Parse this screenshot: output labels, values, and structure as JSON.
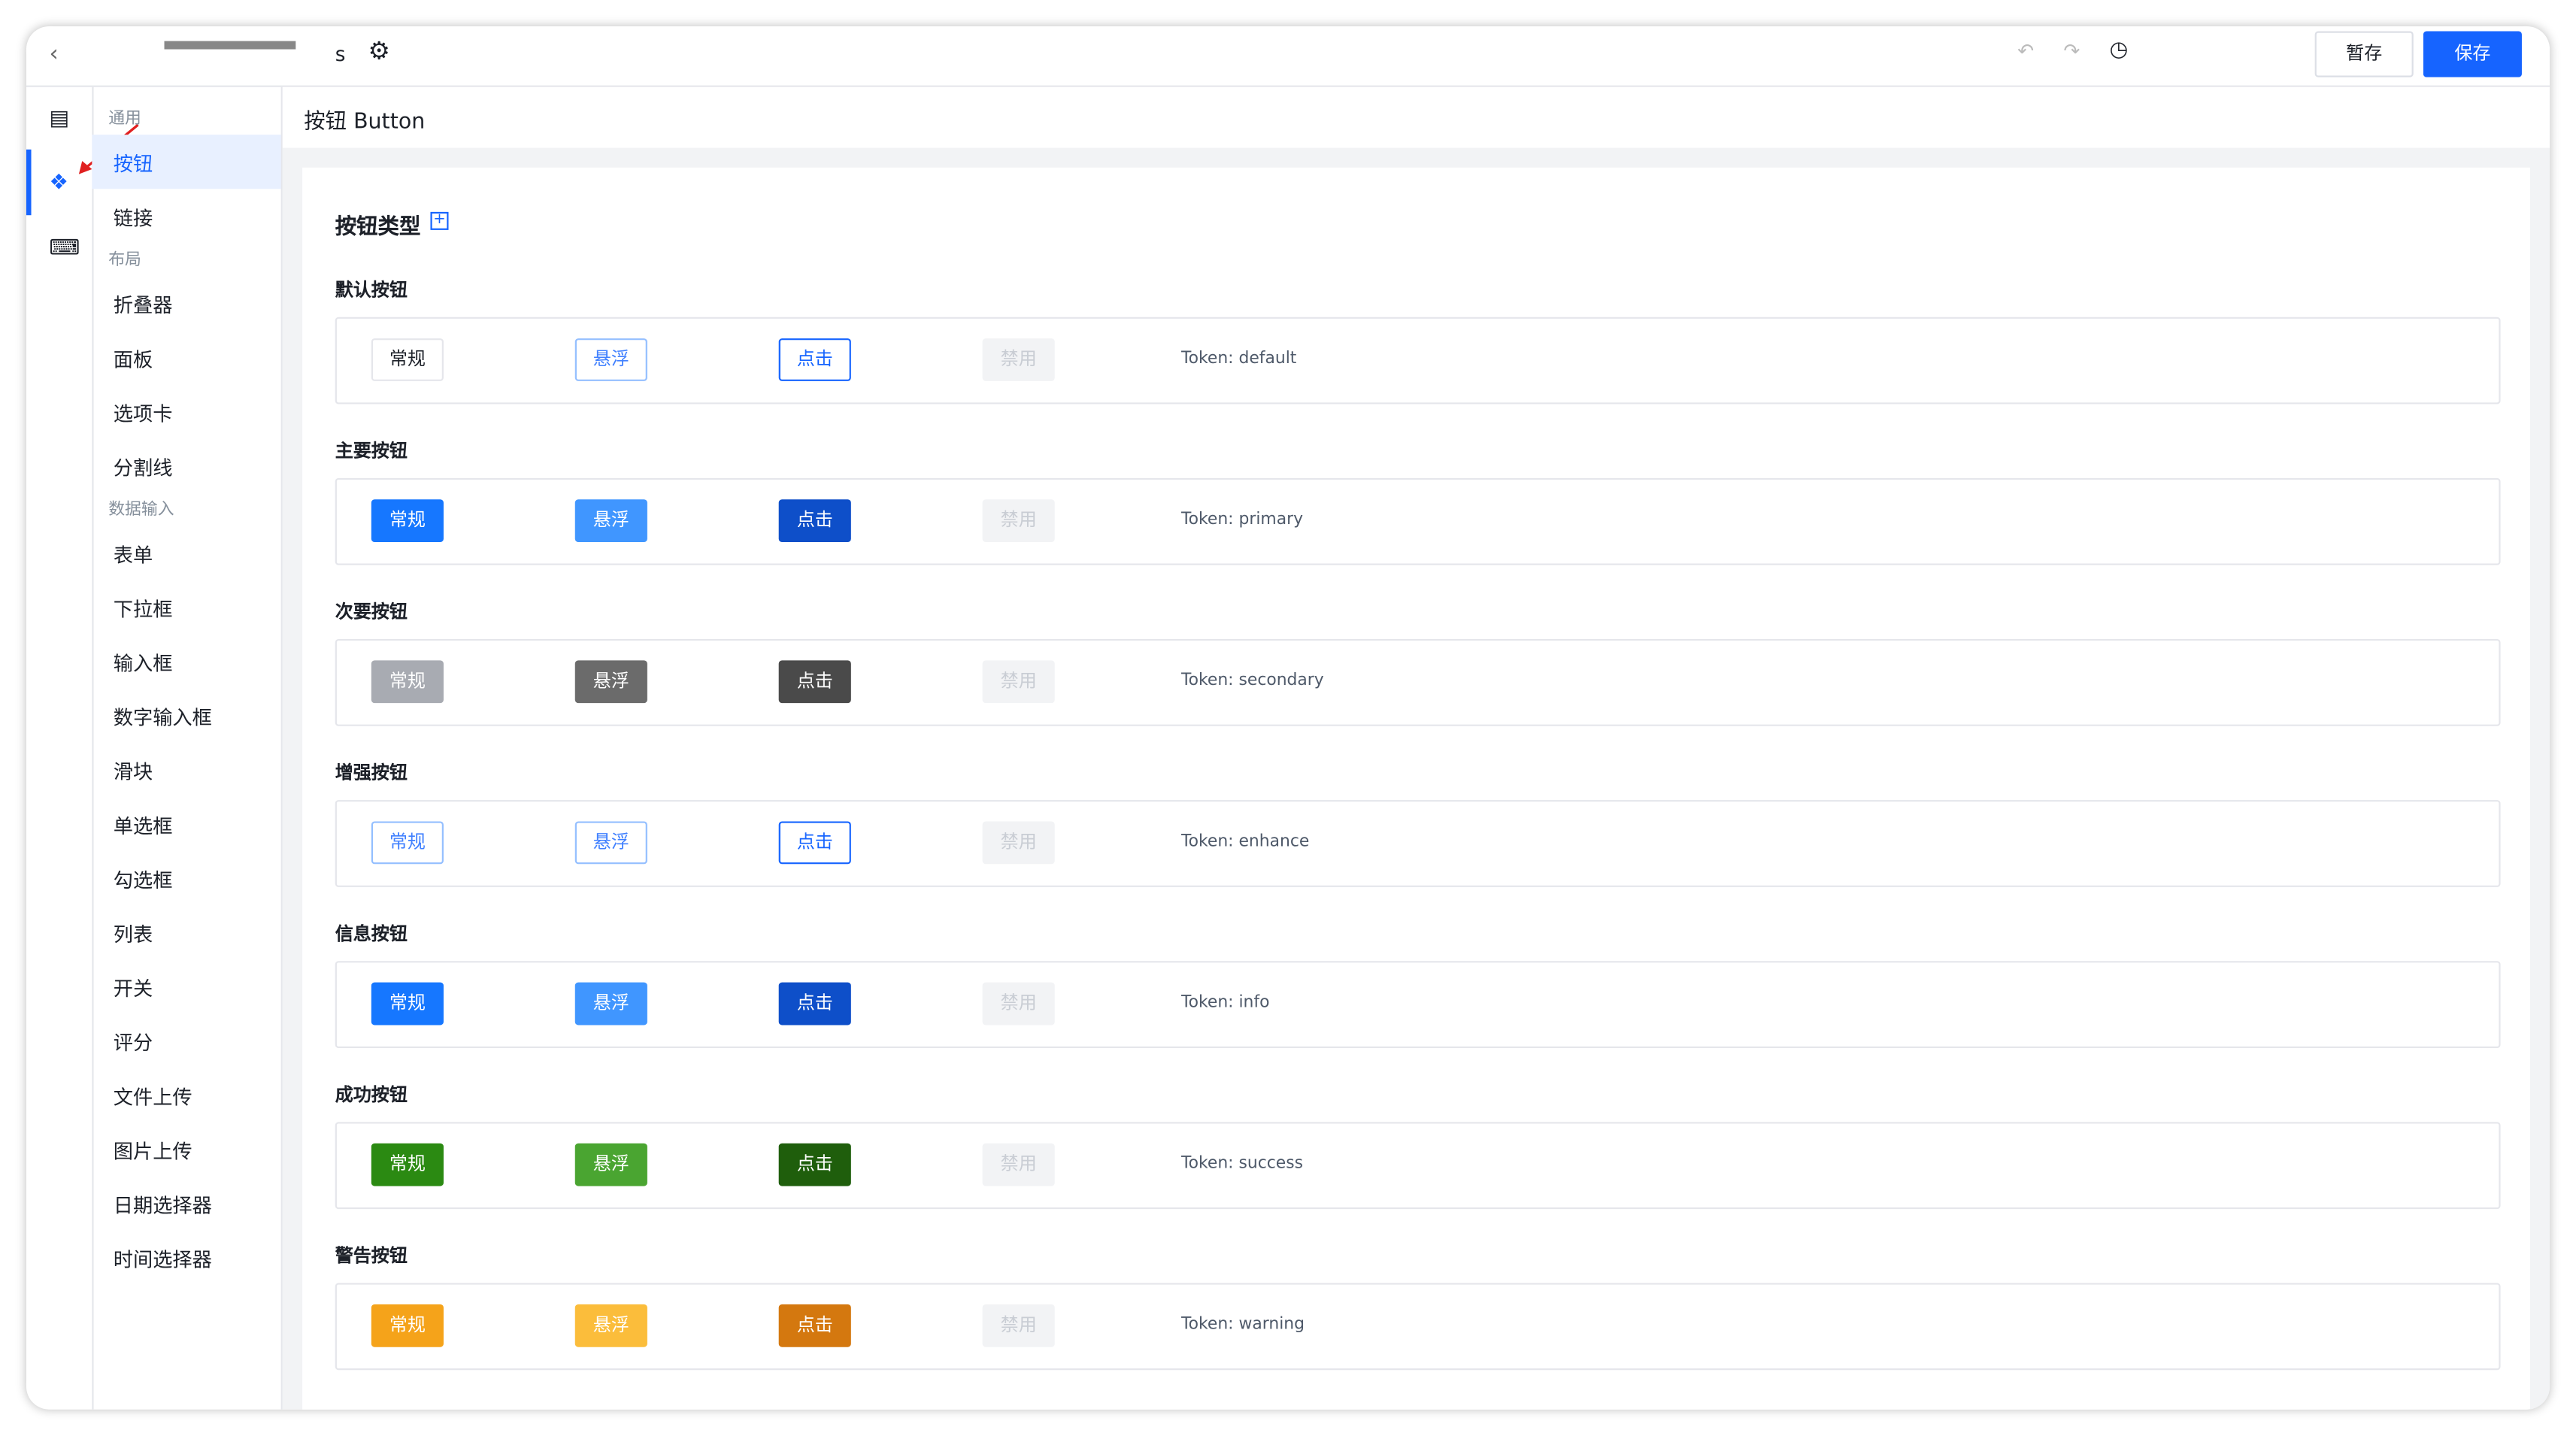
{
  "toolbar": {
    "title": "s",
    "buttons": [
      "暂存",
      "保存"
    ]
  },
  "nav": {
    "groups": [
      {
        "title": "通用",
        "items": [
          "按钮",
          "链接"
        ]
      },
      {
        "title": "布局",
        "items": [
          "折叠器",
          "面板",
          "选项卡",
          "分割线"
        ]
      },
      {
        "title": "数据输入",
        "items": [
          "表单",
          "下拉框",
          "输入框",
          "数字输入框",
          "滑块",
          "单选框",
          "勾选框",
          "列表",
          "开关",
          "评分",
          "文件上传",
          "图片上传",
          "日期选择器",
          "时间选择器"
        ]
      }
    ]
  },
  "page": {
    "title": "按钮 Button",
    "section": "按钮类型",
    "states": [
      "常规",
      "悬浮",
      "点击",
      "禁用"
    ],
    "rows": [
      {
        "label": "默认按钮",
        "token": "Token: default"
      },
      {
        "label": "主要按钮",
        "token": "Token: primary"
      },
      {
        "label": "次要按钮",
        "token": "Token: secondary"
      },
      {
        "label": "增强按钮",
        "token": "Token: enhance"
      },
      {
        "label": "信息按钮",
        "token": "Token: info"
      },
      {
        "label": "成功按钮",
        "token": "Token: success"
      },
      {
        "label": "警告按钮",
        "token": "Token: warning"
      }
    ]
  }
}
